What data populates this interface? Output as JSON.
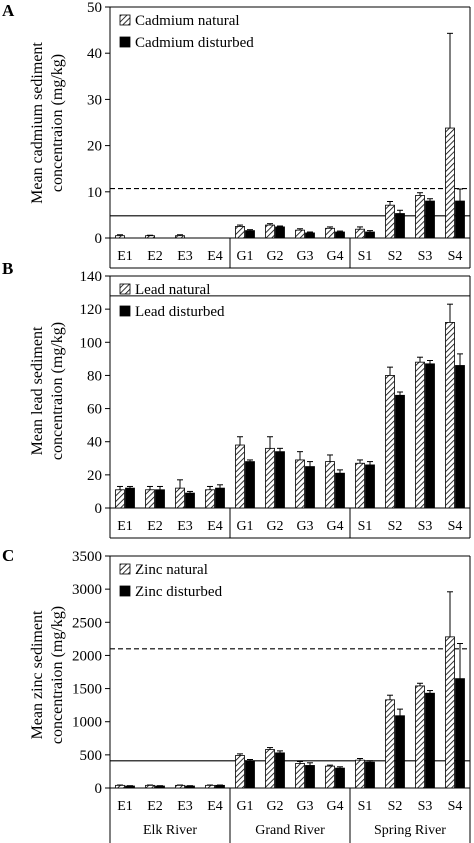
{
  "chart_data": [
    {
      "type": "bar",
      "panel_label": "A",
      "ylabel_lines": [
        "Mean cadmium sediment",
        "concentraion (mg/kg)"
      ],
      "ylim": [
        0,
        50
      ],
      "yticks": [
        0,
        10,
        20,
        30,
        40,
        50
      ],
      "categories": [
        "E1",
        "E2",
        "E3",
        "E4",
        "G1",
        "G2",
        "G3",
        "G4",
        "S1",
        "S2",
        "S3",
        "S4"
      ],
      "series": [
        {
          "name": "Cadmium natural",
          "pattern": "hatched",
          "values": [
            0.5,
            0.5,
            0.5,
            null,
            2.5,
            2.8,
            1.7,
            2.1,
            1.9,
            7.1,
            9.2,
            23.8
          ],
          "errors": [
            0.2,
            0.1,
            0.2,
            null,
            0.3,
            0.3,
            0.3,
            0.3,
            0.5,
            0.8,
            0.6,
            20.5
          ]
        },
        {
          "name": "Cadmium disturbed",
          "pattern": "solid",
          "values": [
            null,
            null,
            null,
            null,
            1.6,
            2.4,
            1.1,
            1.3,
            1.3,
            5.3,
            8.0,
            8.0
          ],
          "errors": [
            null,
            null,
            null,
            null,
            0.2,
            0.2,
            0.2,
            0.2,
            0.3,
            0.7,
            0.5,
            2.6
          ]
        }
      ],
      "reference_lines": [
        {
          "style": "dashed",
          "value": 10.7
        },
        {
          "style": "solid",
          "value": 4.8
        }
      ],
      "legend_position": "top-left"
    },
    {
      "type": "bar",
      "panel_label": "B",
      "ylabel_lines": [
        "Mean lead sediment",
        "concentraion (mg/kg)"
      ],
      "ylim": [
        0,
        140
      ],
      "yticks": [
        0,
        20,
        40,
        60,
        80,
        100,
        120,
        140
      ],
      "categories": [
        "E1",
        "E2",
        "E3",
        "E4",
        "G1",
        "G2",
        "G3",
        "G4",
        "S1",
        "S2",
        "S3",
        "S4"
      ],
      "series": [
        {
          "name": "Lead natural",
          "pattern": "hatched",
          "values": [
            11,
            11,
            12,
            11,
            38,
            36,
            29,
            28,
            27,
            80,
            88,
            112
          ],
          "errors": [
            2,
            2,
            5,
            2,
            5,
            7,
            5,
            4,
            2,
            5,
            3,
            11
          ]
        },
        {
          "name": "Lead disturbed",
          "pattern": "solid",
          "values": [
            12,
            11,
            9,
            12,
            28,
            34,
            25,
            21,
            26,
            68,
            87,
            86
          ],
          "errors": [
            1,
            2,
            1,
            2,
            1,
            2,
            3,
            2,
            2,
            2,
            2,
            7
          ]
        }
      ],
      "reference_lines": [
        {
          "style": "solid",
          "value": 128
        }
      ],
      "legend_position": "top-left"
    },
    {
      "type": "bar",
      "panel_label": "C",
      "ylabel_lines": [
        "Mean zinc sediment",
        "concentraion (mg/kg)"
      ],
      "ylim": [
        0,
        3500
      ],
      "yticks": [
        0,
        500,
        1000,
        1500,
        2000,
        2500,
        3000,
        3500
      ],
      "categories": [
        "E1",
        "E2",
        "E3",
        "E4",
        "G1",
        "G2",
        "G3",
        "G4",
        "S1",
        "S2",
        "S3",
        "S4"
      ],
      "series": [
        {
          "name": "Zinc natural",
          "pattern": "hatched",
          "values": [
            40,
            40,
            40,
            40,
            490,
            580,
            370,
            330,
            420,
            1330,
            1540,
            2280
          ],
          "errors": [
            5,
            5,
            5,
            5,
            25,
            30,
            30,
            15,
            25,
            70,
            40,
            680
          ]
        },
        {
          "name": "Zinc disturbed",
          "pattern": "solid",
          "values": [
            30,
            30,
            30,
            40,
            410,
            530,
            340,
            300,
            390,
            1090,
            1430,
            1650
          ],
          "errors": [
            5,
            5,
            5,
            5,
            20,
            30,
            40,
            20,
            20,
            100,
            40,
            530
          ]
        }
      ],
      "reference_lines": [
        {
          "style": "dashed",
          "value": 2100
        },
        {
          "style": "solid",
          "value": 410
        }
      ],
      "legend_position": "top-left"
    }
  ],
  "groups": [
    "Elk River",
    "Grand River",
    "Spring River"
  ]
}
